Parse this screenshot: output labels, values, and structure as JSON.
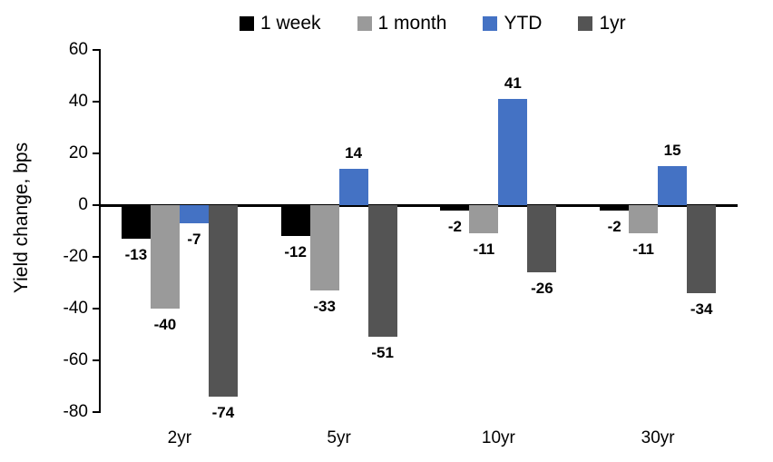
{
  "chart_data": {
    "type": "bar",
    "title": "",
    "ylabel": "Yield change, bps",
    "xlabel": "",
    "categories": [
      "2yr",
      "5yr",
      "10yr",
      "30yr"
    ],
    "series": [
      {
        "name": "1 week",
        "color": "#000000",
        "values": [
          -13,
          -12,
          -2,
          -2
        ]
      },
      {
        "name": "1 month",
        "color": "#9A9A9A",
        "values": [
          -40,
          -33,
          -11,
          -11
        ]
      },
      {
        "name": "YTD",
        "color": "#4472C4",
        "values": [
          -7,
          14,
          41,
          15
        ]
      },
      {
        "name": "1yr",
        "color": "#545454",
        "values": [
          -74,
          -51,
          -26,
          -34
        ]
      }
    ],
    "ylim": [
      -80,
      60
    ],
    "ytick_step": 20,
    "grid": false,
    "data_labels": true,
    "legend_position": "top"
  }
}
